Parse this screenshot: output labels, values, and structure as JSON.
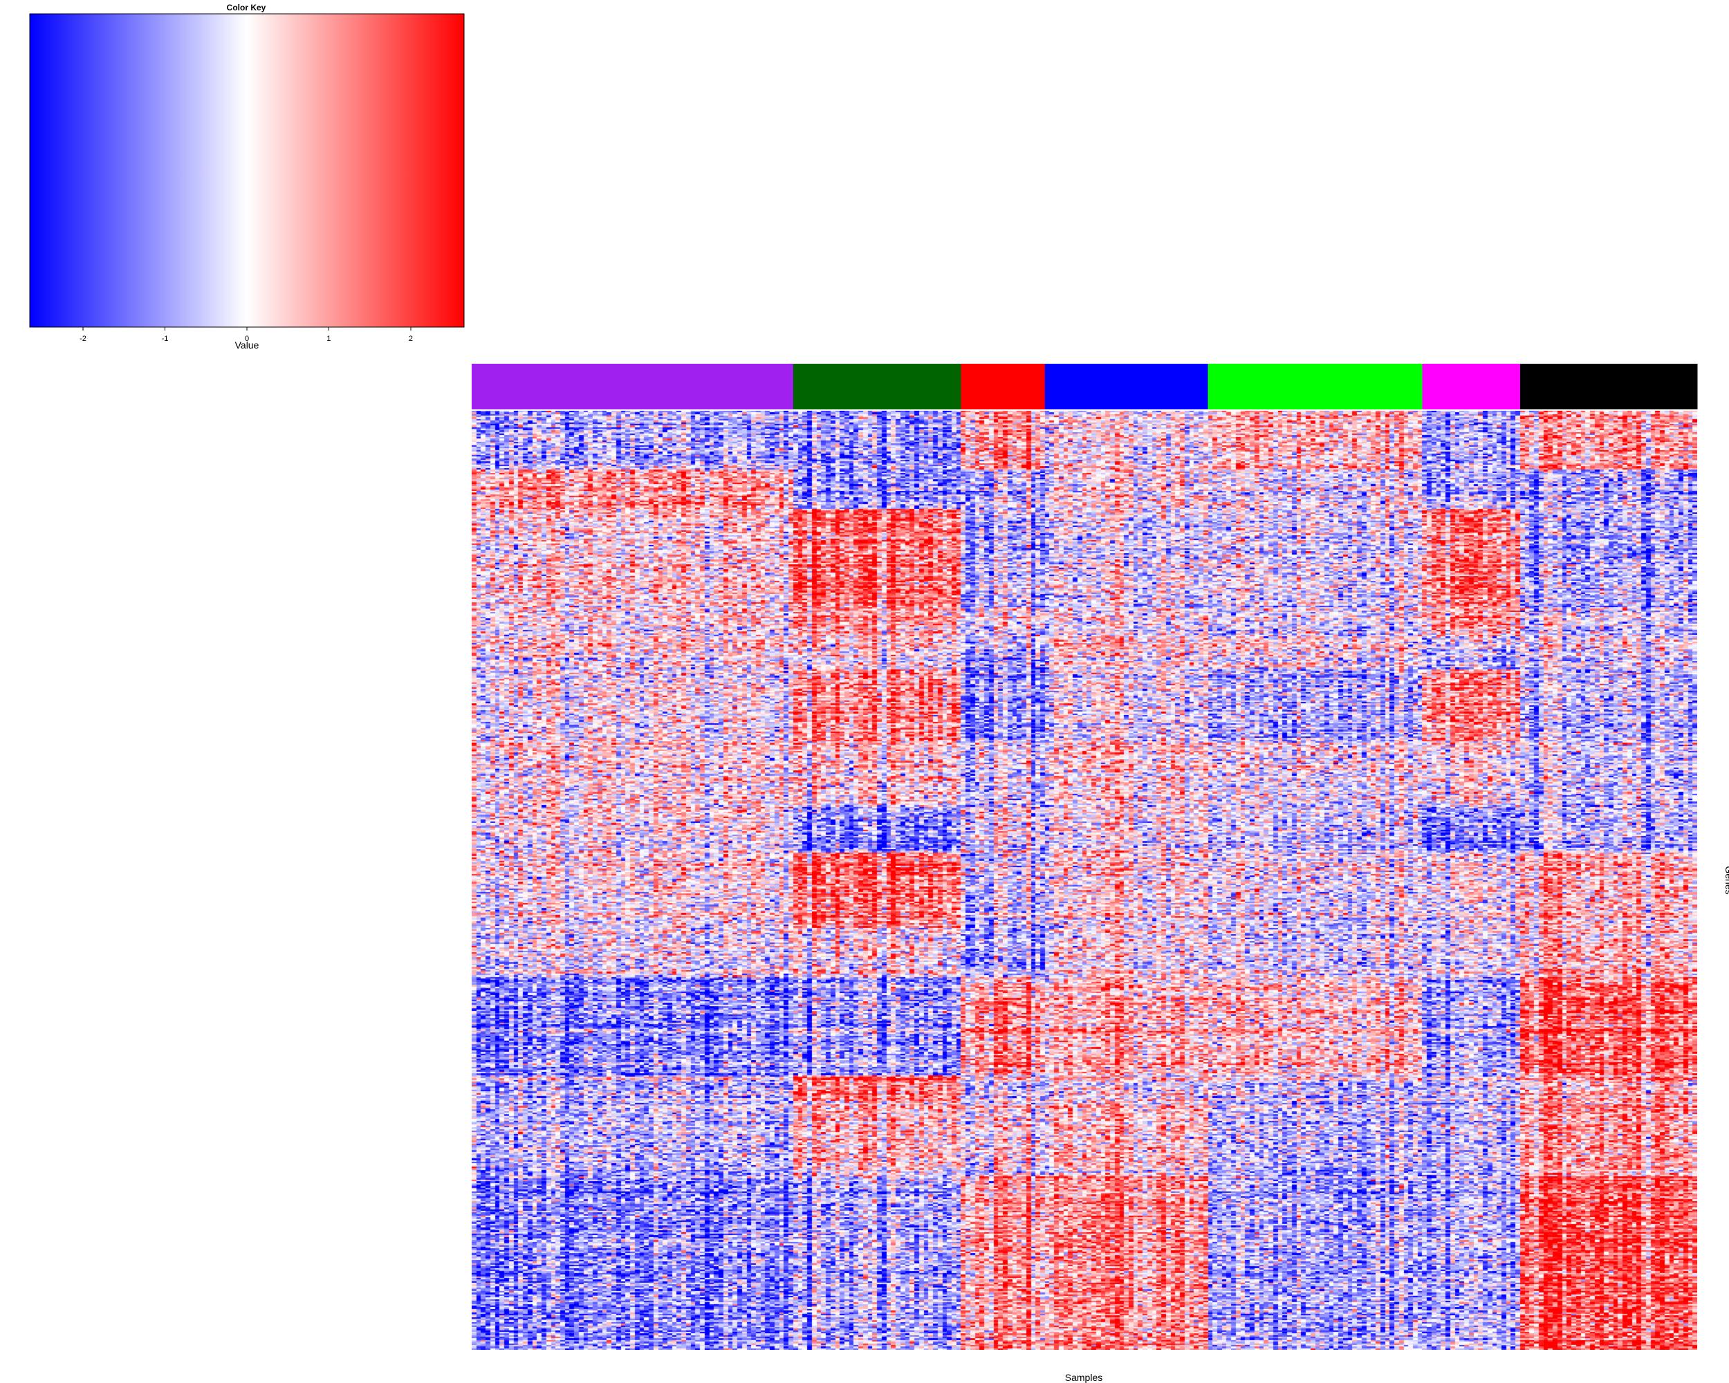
{
  "chart_data": {
    "type": "heatmap",
    "title": "",
    "xlabel": "Samples",
    "ylabel": "Genes",
    "color_key": {
      "title": "Color Key",
      "label": "Value",
      "range": [
        -2.65,
        2.65
      ],
      "ticks": [
        -2,
        -1,
        0,
        1,
        2
      ],
      "tick_labels": [
        "-2",
        "-1",
        "0",
        "1",
        "2"
      ],
      "colors": {
        "low": "#0000ff",
        "mid": "#ffffff",
        "high": "#ff0000"
      }
    },
    "sample_groups": [
      {
        "color": "#a020f0",
        "samples": 69
      },
      {
        "color": "#006400",
        "samples": 36
      },
      {
        "color": "#ff0000",
        "samples": 18
      },
      {
        "color": "#0000ff",
        "samples": 35
      },
      {
        "color": "#00ff00",
        "samples": 46
      },
      {
        "color": "#ff00ff",
        "samples": 21
      },
      {
        "color": "#000000",
        "samples": 38
      }
    ],
    "gene_blocks": [
      {
        "genes": 36,
        "group_means": [
          -0.7,
          -1.0,
          1.1,
          0.1,
          0.8,
          -0.8,
          1.0
        ]
      },
      {
        "genes": 24,
        "group_means": [
          1.1,
          -1.1,
          -0.6,
          0.2,
          -0.1,
          -0.8,
          -0.8
        ]
      },
      {
        "genes": 60,
        "group_means": [
          0.4,
          1.5,
          -0.7,
          -0.2,
          -0.2,
          1.4,
          -0.9
        ]
      },
      {
        "genes": 18,
        "group_means": [
          0.2,
          0.9,
          0.0,
          0.0,
          -0.3,
          1.0,
          -0.4
        ]
      },
      {
        "genes": 20,
        "group_means": [
          0.3,
          0.2,
          -0.8,
          0.3,
          0.2,
          -0.6,
          -0.2
        ]
      },
      {
        "genes": 44,
        "group_means": [
          0.1,
          1.2,
          -1.0,
          0.0,
          -0.7,
          1.3,
          -0.6
        ]
      },
      {
        "genes": 40,
        "group_means": [
          0.3,
          0.4,
          -0.3,
          0.4,
          0.0,
          0.2,
          -0.4
        ]
      },
      {
        "genes": 28,
        "group_means": [
          0.2,
          -1.3,
          0.0,
          0.1,
          -0.3,
          -1.2,
          -0.6
        ]
      },
      {
        "genes": 46,
        "group_means": [
          0.1,
          1.4,
          -0.6,
          0.1,
          -0.2,
          -0.1,
          0.6
        ]
      },
      {
        "genes": 30,
        "group_means": [
          0.0,
          0.2,
          -0.9,
          0.2,
          -0.1,
          -0.2,
          0.7
        ]
      },
      {
        "genes": 60,
        "group_means": [
          -1.3,
          -1.1,
          1.0,
          0.6,
          0.5,
          -1.0,
          1.6
        ]
      },
      {
        "genes": 16,
        "group_means": [
          -0.6,
          1.3,
          -0.3,
          0.0,
          -0.4,
          -0.5,
          0.8
        ]
      },
      {
        "genes": 46,
        "group_means": [
          -0.6,
          0.6,
          0.1,
          0.5,
          -0.6,
          -0.6,
          1.0
        ]
      },
      {
        "genes": 106,
        "group_means": [
          -1.2,
          -0.8,
          1.0,
          1.1,
          -0.8,
          -0.7,
          1.8
        ]
      }
    ]
  }
}
